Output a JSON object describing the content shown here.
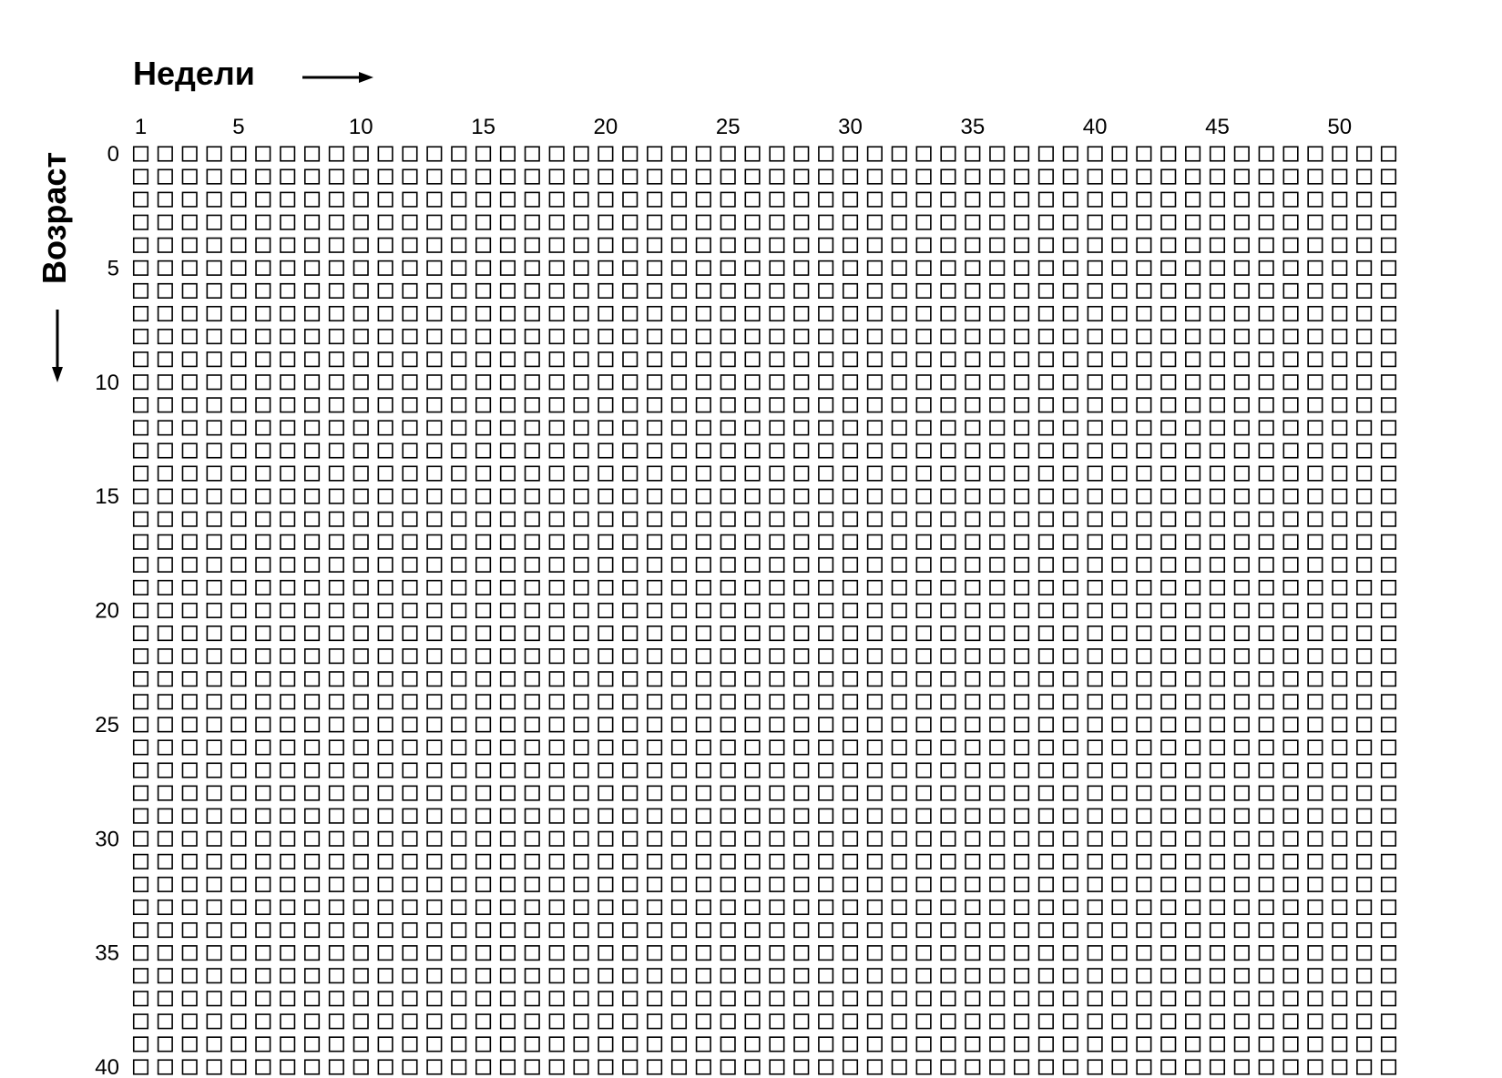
{
  "chart_data": {
    "type": "heatmap",
    "xlabel": "Недели",
    "ylabel": "Возраст",
    "x_tick_labels": [
      "1",
      "5",
      "10",
      "15",
      "20",
      "25",
      "30",
      "35",
      "40",
      "45",
      "50"
    ],
    "x_tick_values": [
      1,
      5,
      10,
      15,
      20,
      25,
      30,
      35,
      40,
      45,
      50
    ],
    "y_tick_labels": [
      "0",
      "5",
      "10",
      "15",
      "20",
      "25",
      "30",
      "35",
      "40"
    ],
    "y_tick_values": [
      0,
      5,
      10,
      15,
      20,
      25,
      30,
      35,
      40
    ],
    "weeks_per_row": 52,
    "first_age": 0,
    "last_age_visible": 40,
    "xlim": [
      1,
      52
    ],
    "ylim": [
      0,
      40
    ],
    "cell_style": "empty-outlined-square",
    "grid": false,
    "colors": {
      "cell_stroke": "#000000",
      "cell_fill": "#ffffff",
      "text": "#000000",
      "background": "#ffffff"
    }
  }
}
